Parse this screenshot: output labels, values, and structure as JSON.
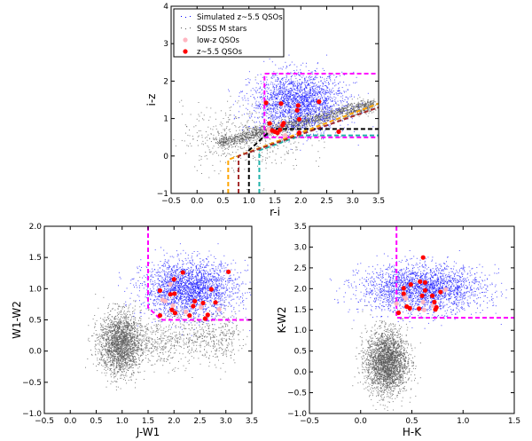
{
  "legend": {
    "items": [
      {
        "label": "Simulated z~5.5 QSOs",
        "color": "#0000ff",
        "marker": "dot"
      },
      {
        "label": "SDSS M stars",
        "color": "#555555",
        "marker": "dot"
      },
      {
        "label": "low-z QSOs",
        "color": "#ffb6c1",
        "marker": "circle"
      },
      {
        "label": "z~5.5 QSOs",
        "color": "#ff0000",
        "marker": "circle"
      }
    ]
  },
  "chart_data": [
    {
      "type": "scatter",
      "xlabel": "r-i",
      "ylabel": "i-z",
      "xlim": [
        -0.5,
        3.5
      ],
      "ylim": [
        -1,
        4
      ],
      "xticks": [
        "-0.5",
        "0.0",
        "0.5",
        "1.0",
        "1.5",
        "2.0",
        "2.5",
        "3.0",
        "3.5"
      ],
      "yticks": [
        "-1",
        "0",
        "1",
        "2",
        "3",
        "4"
      ],
      "ytick_values": [
        -1,
        0,
        1,
        2,
        3,
        4
      ],
      "xtick_values": [
        -0.5,
        0,
        0.5,
        1,
        1.5,
        2,
        2.5,
        3,
        3.5
      ],
      "legend": "top-left",
      "clouds": [
        {
          "series": "SDSS M stars",
          "n": 1800,
          "shape": "band",
          "x0": 0.4,
          "y0": 0.35,
          "x1": 3.4,
          "y1": 1.4,
          "spread": 0.09
        },
        {
          "series": "SDSS M stars",
          "n": 500,
          "shape": "gauss",
          "cx": 0.9,
          "cy": 0.5,
          "sx": 0.6,
          "sy": 0.45
        },
        {
          "series": "Simulated z~5.5 QSOs",
          "n": 2200,
          "shape": "gauss",
          "cx": 1.95,
          "cy": 1.45,
          "sx": 0.45,
          "sy": 0.38
        }
      ],
      "red": [
        [
          1.33,
          1.42
        ],
        [
          1.62,
          1.4
        ],
        [
          1.95,
          1.35
        ],
        [
          1.93,
          1.22
        ],
        [
          2.35,
          1.45
        ],
        [
          1.97,
          0.98
        ],
        [
          1.4,
          0.87
        ],
        [
          1.67,
          0.88
        ],
        [
          1.65,
          0.82
        ],
        [
          1.5,
          0.65
        ],
        [
          1.55,
          0.62
        ],
        [
          1.6,
          0.7
        ],
        [
          1.97,
          0.62
        ],
        [
          2.73,
          0.65
        ],
        [
          1.45,
          0.68
        ]
      ],
      "pink": [
        [
          1.38,
          0.72
        ],
        [
          1.63,
          0.85
        ],
        [
          1.7,
          0.55
        ],
        [
          1.4,
          0.65
        ]
      ],
      "cuts": [
        {
          "color": "#ff00ff",
          "points": [
            [
              1.3,
              0.5
            ],
            [
              1.3,
              2.2
            ],
            [
              3.5,
              2.2
            ]
          ]
        },
        {
          "color": "#ff00ff",
          "points": [
            [
              1.3,
              0.5
            ],
            [
              3.5,
              0.5
            ]
          ]
        },
        {
          "color": "#000000",
          "points": [
            [
              1.0,
              -1
            ],
            [
              1.0,
              0.15
            ],
            [
              1.45,
              0.72
            ],
            [
              3.5,
              0.72
            ]
          ]
        },
        {
          "color": "#20b2aa",
          "points": [
            [
              1.2,
              -1
            ],
            [
              1.2,
              0.15
            ],
            [
              2.0,
              0.55
            ],
            [
              3.5,
              0.55
            ]
          ]
        },
        {
          "color": "#ffa500",
          "points": [
            [
              0.6,
              -1
            ],
            [
              0.6,
              -0.1
            ],
            [
              3.5,
              1.4
            ]
          ]
        },
        {
          "color": "#a52a2a",
          "points": [
            [
              0.8,
              -1
            ],
            [
              0.8,
              0.0
            ],
            [
              3.5,
              1.3
            ]
          ]
        }
      ]
    },
    {
      "type": "scatter",
      "xlabel": "J-W1",
      "ylabel": "W1-W2",
      "xlim": [
        -0.5,
        3.5
      ],
      "ylim": [
        -1,
        2
      ],
      "xticks": [
        "-0.5",
        "0.0",
        "0.5",
        "1.0",
        "1.5",
        "2.0",
        "2.5",
        "3.0",
        "3.5"
      ],
      "xtick_values": [
        -0.5,
        0,
        0.5,
        1,
        1.5,
        2,
        2.5,
        3,
        3.5
      ],
      "yticks": [
        "-1.0",
        "-0.5",
        "0.0",
        "0.5",
        "1.0",
        "1.5",
        "2.0"
      ],
      "ytick_values": [
        -1,
        -0.5,
        0,
        0.5,
        1,
        1.5,
        2
      ],
      "clouds": [
        {
          "series": "SDSS M stars",
          "n": 2000,
          "shape": "gauss",
          "cx": 0.95,
          "cy": 0.12,
          "sx": 0.2,
          "sy": 0.25
        },
        {
          "series": "SDSS M stars",
          "n": 900,
          "shape": "band",
          "x0": 1.0,
          "y0": 0.15,
          "x1": 3.2,
          "y1": 0.25,
          "spread": 0.2
        },
        {
          "series": "Simulated z~5.5 QSOs",
          "n": 2400,
          "shape": "gauss",
          "cx": 2.3,
          "cy": 1.0,
          "sx": 0.45,
          "sy": 0.22
        }
      ],
      "red": [
        [
          1.73,
          0.97
        ],
        [
          2.0,
          1.15
        ],
        [
          2.17,
          1.26
        ],
        [
          1.93,
          0.91
        ],
        [
          2.01,
          0.92
        ],
        [
          2.72,
          0.99
        ],
        [
          3.05,
          1.27
        ],
        [
          2.4,
          0.8
        ],
        [
          2.56,
          0.77
        ],
        [
          2.8,
          0.78
        ],
        [
          2.37,
          0.72
        ],
        [
          1.96,
          0.66
        ],
        [
          2.02,
          0.61
        ],
        [
          1.73,
          0.57
        ],
        [
          2.3,
          0.57
        ],
        [
          2.65,
          0.58
        ],
        [
          2.6,
          0.52
        ]
      ],
      "pink": [
        [
          1.93,
          1.07
        ],
        [
          1.78,
          0.82
        ],
        [
          1.83,
          0.8
        ],
        [
          1.98,
          0.73
        ],
        [
          2.23,
          0.63
        ],
        [
          2.52,
          0.7
        ],
        [
          2.87,
          0.67
        ]
      ],
      "cuts": [
        {
          "color": "#ff00ff",
          "points": [
            [
              1.5,
              2.0
            ],
            [
              1.5,
              0.7
            ],
            [
              1.75,
              0.5
            ],
            [
              3.5,
              0.5
            ]
          ]
        }
      ]
    },
    {
      "type": "scatter",
      "xlabel": "H-K",
      "ylabel": "K-W2",
      "xlim": [
        -0.5,
        1.5
      ],
      "ylim": [
        -1,
        3.5
      ],
      "xticks": [
        "-0.5",
        "0.0",
        "0.5",
        "1.0",
        "1.5"
      ],
      "xtick_values": [
        -0.5,
        0,
        0.5,
        1,
        1.5
      ],
      "yticks": [
        "-1.0",
        "-0.5",
        "0.0",
        "0.5",
        "1.0",
        "1.5",
        "2.0",
        "2.5",
        "3.0",
        "3.5"
      ],
      "ytick_values": [
        -1,
        -0.5,
        0,
        0.5,
        1,
        1.5,
        2,
        2.5,
        3,
        3.5
      ],
      "clouds": [
        {
          "series": "SDSS M stars",
          "n": 2600,
          "shape": "gauss",
          "cx": 0.25,
          "cy": 0.25,
          "sx": 0.1,
          "sy": 0.38
        },
        {
          "series": "Simulated z~5.5 QSOs",
          "n": 2400,
          "shape": "gauss",
          "cx": 0.6,
          "cy": 2.0,
          "sx": 0.3,
          "sy": 0.28
        }
      ],
      "red": [
        [
          0.61,
          2.75
        ],
        [
          0.42,
          2.01
        ],
        [
          0.49,
          2.1
        ],
        [
          0.58,
          2.17
        ],
        [
          0.63,
          2.15
        ],
        [
          0.63,
          1.96
        ],
        [
          0.42,
          1.88
        ],
        [
          0.6,
          1.83
        ],
        [
          0.7,
          1.83
        ],
        [
          0.78,
          1.92
        ],
        [
          0.72,
          1.68
        ],
        [
          0.45,
          1.57
        ],
        [
          0.48,
          1.53
        ],
        [
          0.57,
          1.52
        ],
        [
          0.74,
          1.55
        ],
        [
          0.73,
          1.5
        ],
        [
          0.37,
          1.42
        ]
      ],
      "pink": [
        [
          0.43,
          1.8
        ],
        [
          0.44,
          1.76
        ],
        [
          0.61,
          1.68
        ],
        [
          0.35,
          1.64
        ],
        [
          0.83,
          1.98
        ],
        [
          0.71,
          1.6
        ],
        [
          0.62,
          1.49
        ]
      ],
      "cuts": [
        {
          "color": "#ff00ff",
          "points": [
            [
              0.35,
              3.5
            ],
            [
              0.35,
              1.3
            ],
            [
              1.5,
              1.3
            ]
          ]
        }
      ]
    }
  ]
}
